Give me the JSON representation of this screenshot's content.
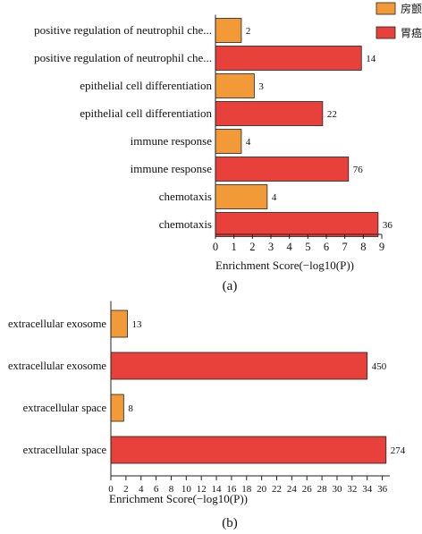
{
  "legend": {
    "items": [
      {
        "label": "房颤",
        "color": "#f39a38"
      },
      {
        "label": "胃癌",
        "color": "#e8413c"
      }
    ]
  },
  "chart_data": [
    {
      "type": "bar",
      "orientation": "horizontal",
      "caption": "(a)",
      "xlabel": "Enrichment Score(−log10(P))",
      "xlim": [
        0,
        9
      ],
      "xticks": [
        0,
        1,
        2,
        3,
        4,
        5,
        6,
        7,
        8,
        9
      ],
      "grid": false,
      "legend_position": "top-right",
      "bars": [
        {
          "category": "positive regulation of neutrophil che...",
          "series": "房颤",
          "value": 1.4,
          "label": "2"
        },
        {
          "category": "positive regulation of neutrophil che...",
          "series": "胃癌",
          "value": 7.9,
          "label": "14"
        },
        {
          "category": "epithelial cell differentiation",
          "series": "房颤",
          "value": 2.1,
          "label": "3"
        },
        {
          "category": "epithelial cell differentiation",
          "series": "胃癌",
          "value": 5.8,
          "label": "22"
        },
        {
          "category": "immune response",
          "series": "房颤",
          "value": 1.4,
          "label": "4"
        },
        {
          "category": "immune response",
          "series": "胃癌",
          "value": 7.2,
          "label": "76"
        },
        {
          "category": "chemotaxis",
          "series": "房颤",
          "value": 2.8,
          "label": "4"
        },
        {
          "category": "chemotaxis",
          "series": "胃癌",
          "value": 8.8,
          "label": "36"
        }
      ]
    },
    {
      "type": "bar",
      "orientation": "horizontal",
      "caption": "(b)",
      "xlabel": "Enrichment Score(−log10(P))",
      "xlim": [
        0,
        37
      ],
      "xticks": [
        0,
        2,
        4,
        6,
        8,
        10,
        12,
        14,
        16,
        18,
        20,
        22,
        24,
        26,
        28,
        30,
        32,
        34,
        36
      ],
      "grid": false,
      "bars": [
        {
          "category": "extracellular exosome",
          "series": "房颤",
          "value": 2.2,
          "label": "13"
        },
        {
          "category": "extracellular exosome",
          "series": "胃癌",
          "value": 34,
          "label": "450"
        },
        {
          "category": "extracellular space",
          "series": "房颤",
          "value": 1.7,
          "label": "8"
        },
        {
          "category": "extracellular space",
          "series": "胃癌",
          "value": 36.5,
          "label": "274"
        }
      ]
    }
  ]
}
